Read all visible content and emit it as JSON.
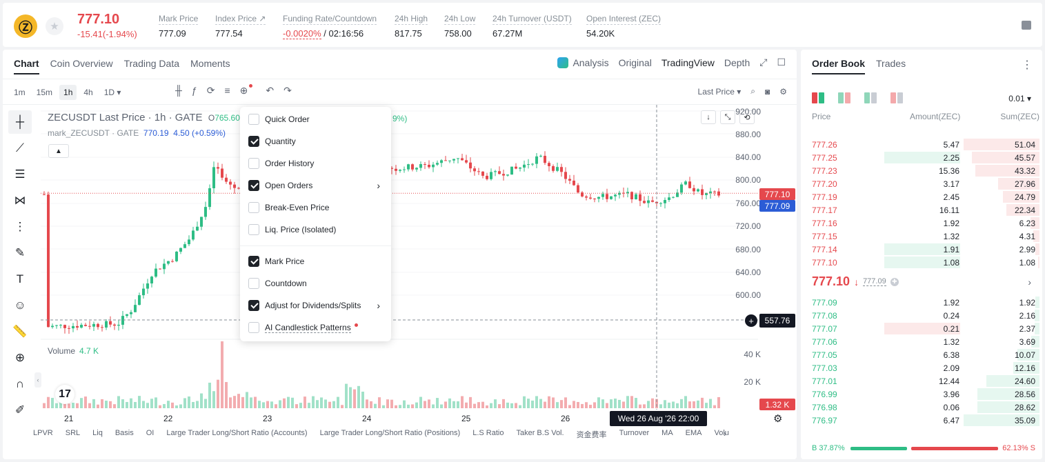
{
  "header": {
    "last_price": "777.10",
    "change": "-15.41(-1.94%)",
    "stats": [
      {
        "label": "Mark Price",
        "value": "777.09"
      },
      {
        "label": "Index Price ↗",
        "value": "777.54"
      },
      {
        "label": "Funding Rate/Countdown",
        "value_red": "-0.0020%",
        "value": " / 02:16:56"
      },
      {
        "label": "24h High",
        "value": "817.75"
      },
      {
        "label": "24h Low",
        "value": "758.00"
      },
      {
        "label": "24h Turnover (USDT)",
        "value": "67.27M"
      },
      {
        "label": "Open Interest (ZEC)",
        "value": "54.20K"
      }
    ]
  },
  "chart_tabs": [
    "Chart",
    "Coin Overview",
    "Trading Data",
    "Moments"
  ],
  "view_tabs": {
    "analysis": "Analysis",
    "original": "Original",
    "tradingview": "TradingView",
    "depth": "Depth"
  },
  "intervals": [
    "1m",
    "15m",
    "1h",
    "4h",
    "1D ▾"
  ],
  "price_type": "Last Price ▾",
  "legend": {
    "symbol": "ZECUSDT Last Price · 1h · GATE",
    "open_label": "O",
    "open": "765.60",
    "pct_partial": "9%)",
    "mark_symbol": "mark_ZECUSDT · GATE",
    "mark_value": "770.19",
    "mark_change": "4.50 (+0.59%)"
  },
  "price_axis": [
    "920.00",
    "880.00",
    "840.00",
    "800.00",
    "760.00",
    "720.00",
    "680.00",
    "640.00",
    "600.00"
  ],
  "price_tags": {
    "last": "777.10",
    "mark": "777.09",
    "cursor": "557.76",
    "volume": "1.32 K"
  },
  "volume": {
    "label": "Volume",
    "value": "4.7 K",
    "axis": [
      "40 K",
      "20 K"
    ]
  },
  "dates": [
    "21",
    "22",
    "23",
    "24",
    "25",
    "26"
  ],
  "crosshair_date": "Wed 26 Aug '26   22:00",
  "bottom_indicators": [
    "LPVR",
    "SRL",
    "Liq",
    "Basis",
    "OI",
    "Large Trader Long/Short Ratio (Accounts)",
    "Large Trader Long/Short Ratio (Positions)",
    "L.S Ratio",
    "Taker B.S Vol.",
    "资金费率",
    "Turnover",
    "MA",
    "EMA",
    "Volu"
  ],
  "dropdown": {
    "items": [
      {
        "label": "Quick Order",
        "checked": false
      },
      {
        "label": "Quantity",
        "checked": true
      },
      {
        "label": "Order History",
        "checked": false
      },
      {
        "label": "Open Orders",
        "checked": true
      },
      {
        "label": "Break-Even Price",
        "checked": false
      },
      {
        "label": "Liq. Price (Isolated)",
        "checked": false
      },
      {
        "label": "Mark Price",
        "checked": true
      },
      {
        "label": "Countdown",
        "checked": false
      },
      {
        "label": "Adjust for Dividends/Splits",
        "checked": true
      },
      {
        "label": "AI Candlestick Patterns",
        "checked": false
      }
    ]
  },
  "order_book": {
    "tabs": [
      "Order Book",
      "Trades"
    ],
    "precision": "0.01 ▾",
    "columns": {
      "price": "Price",
      "amount": "Amount(ZEC)",
      "sum": "Sum(ZEC)"
    },
    "asks": [
      {
        "price": "777.26",
        "amount": "5.47",
        "sum": "51.04"
      },
      {
        "price": "777.25",
        "amount": "2.25",
        "sum": "45.57"
      },
      {
        "price": "777.23",
        "amount": "15.36",
        "sum": "43.32"
      },
      {
        "price": "777.20",
        "amount": "3.17",
        "sum": "27.96"
      },
      {
        "price": "777.19",
        "amount": "2.45",
        "sum": "24.79"
      },
      {
        "price": "777.17",
        "amount": "16.11",
        "sum": "22.34"
      },
      {
        "price": "777.16",
        "amount": "1.92",
        "sum": "6.23"
      },
      {
        "price": "777.15",
        "amount": "1.32",
        "sum": "4.31"
      },
      {
        "price": "777.14",
        "amount": "1.91",
        "sum": "2.99"
      },
      {
        "price": "777.10",
        "amount": "1.08",
        "sum": "1.08"
      }
    ],
    "mid_price": "777.10",
    "mid_mark": "777.09",
    "bids": [
      {
        "price": "777.09",
        "amount": "1.92",
        "sum": "1.92"
      },
      {
        "price": "777.08",
        "amount": "0.24",
        "sum": "2.16"
      },
      {
        "price": "777.07",
        "amount": "0.21",
        "sum": "2.37"
      },
      {
        "price": "777.06",
        "amount": "1.32",
        "sum": "3.69"
      },
      {
        "price": "777.05",
        "amount": "6.38",
        "sum": "10.07"
      },
      {
        "price": "777.03",
        "amount": "2.09",
        "sum": "12.16"
      },
      {
        "price": "777.01",
        "amount": "12.44",
        "sum": "24.60"
      },
      {
        "price": "776.99",
        "amount": "3.96",
        "sum": "28.56"
      },
      {
        "price": "776.98",
        "amount": "0.06",
        "sum": "28.62"
      },
      {
        "price": "776.97",
        "amount": "6.47",
        "sum": "35.09"
      }
    ],
    "buy_ratio": "B 37.87%",
    "sell_ratio": "62.13% S"
  },
  "colors": {
    "up": "#2ebd85",
    "down": "#e5484d",
    "mark_tag": "#2b5cd6"
  }
}
